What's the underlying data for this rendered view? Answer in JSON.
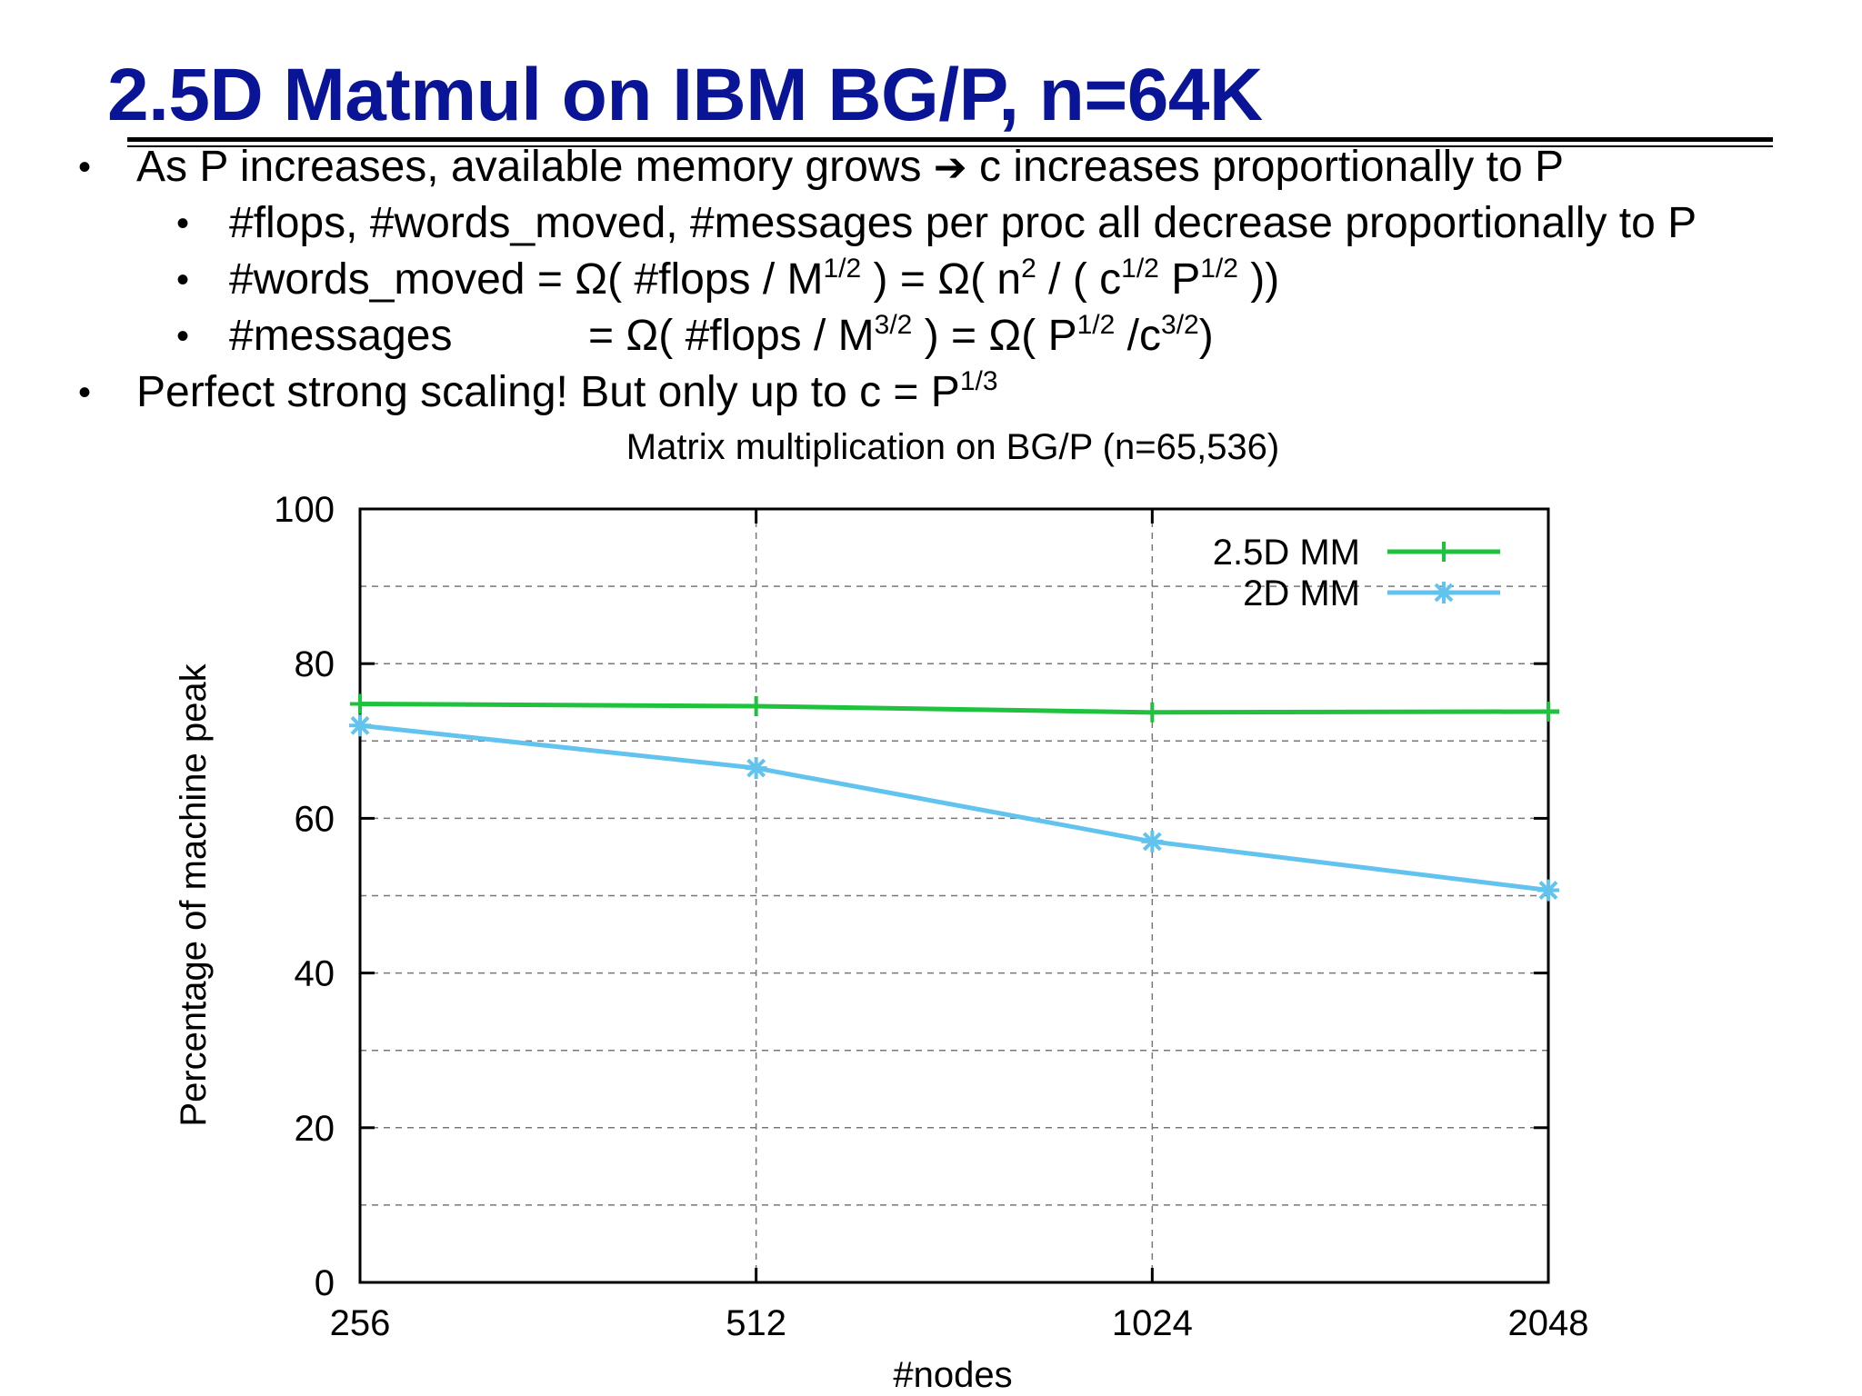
{
  "slide": {
    "title": "2.5D Matmul on IBM BG/P, n=64K",
    "bullets": [
      {
        "level": 1,
        "parts": [
          "As P increases, available memory grows ",
          "➔",
          " c increases proportionally to P"
        ]
      },
      {
        "level": 2,
        "parts": [
          "#flops, #words_moved, #messages per proc all decrease proportionally to P"
        ]
      },
      {
        "level": 2,
        "parts": [
          "#words_moved = Ω( #flops / M",
          "1/2",
          " )  = Ω(  n",
          "2",
          " / ( c",
          "1/2",
          " P",
          "1/2",
          " ))"
        ]
      },
      {
        "level": 2,
        "parts": [
          "#messages",
          "= Ω( #flops / M",
          "3/2",
          " )  = Ω(  P",
          "1/2",
          " /c",
          "3/2",
          ")"
        ]
      },
      {
        "level": 1,
        "parts": [
          "Perfect strong scaling!   But only up to c = P",
          "1/3"
        ]
      }
    ]
  },
  "chart_data": {
    "type": "line",
    "title": "Matrix multiplication on BG/P (n=65,536)",
    "xlabel": "#nodes",
    "ylabel": "Percentage of machine peak",
    "categories": [
      "256",
      "512",
      "1024",
      "2048"
    ],
    "x_scale": "log2",
    "ylim": [
      0,
      100
    ],
    "yticks": [
      "0",
      "20",
      "40",
      "60",
      "80",
      "100"
    ],
    "grid": true,
    "legend_position": "top-right",
    "series": [
      {
        "name": "2.5D MM",
        "color": "#1ec23c",
        "marker": "plus",
        "values": [
          74.8,
          74.5,
          73.7,
          73.8
        ]
      },
      {
        "name": "2D MM",
        "color": "#62c3ee",
        "marker": "star",
        "values": [
          72.0,
          66.5,
          57.0,
          50.7
        ]
      }
    ]
  }
}
